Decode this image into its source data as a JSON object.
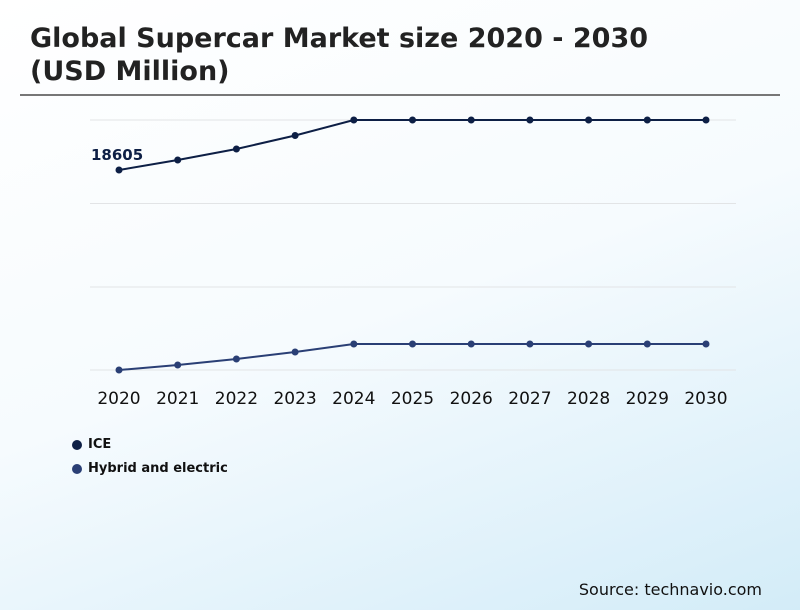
{
  "chart_data": {
    "type": "line",
    "title": "Global Supercar Market size 2020 - 2030 (USD Million)",
    "categories": [
      "2020",
      "2021",
      "2022",
      "2023",
      "2024",
      "2025",
      "2026",
      "2027",
      "2028",
      "2029",
      "2030"
    ],
    "series": [
      {
        "name": "ICE",
        "color": "#0d1f45",
        "values": [
          18605,
          19535,
          20558,
          21814,
          23256,
          23256,
          23256,
          23256,
          23256,
          23256,
          23256
        ]
      },
      {
        "name": "Hybrid and electric",
        "color": "#2a3f75",
        "values": [
          0,
          465,
          1023,
          1674,
          2419,
          2419,
          2419,
          2419,
          2419,
          2419,
          2419
        ]
      }
    ],
    "data_labels": [
      {
        "series": "ICE",
        "category": "2020",
        "text": "18605"
      }
    ],
    "ylim": [
      0,
      23256
    ],
    "grid": true,
    "legend": "bottom-left"
  },
  "source": "Source: technavio.com"
}
